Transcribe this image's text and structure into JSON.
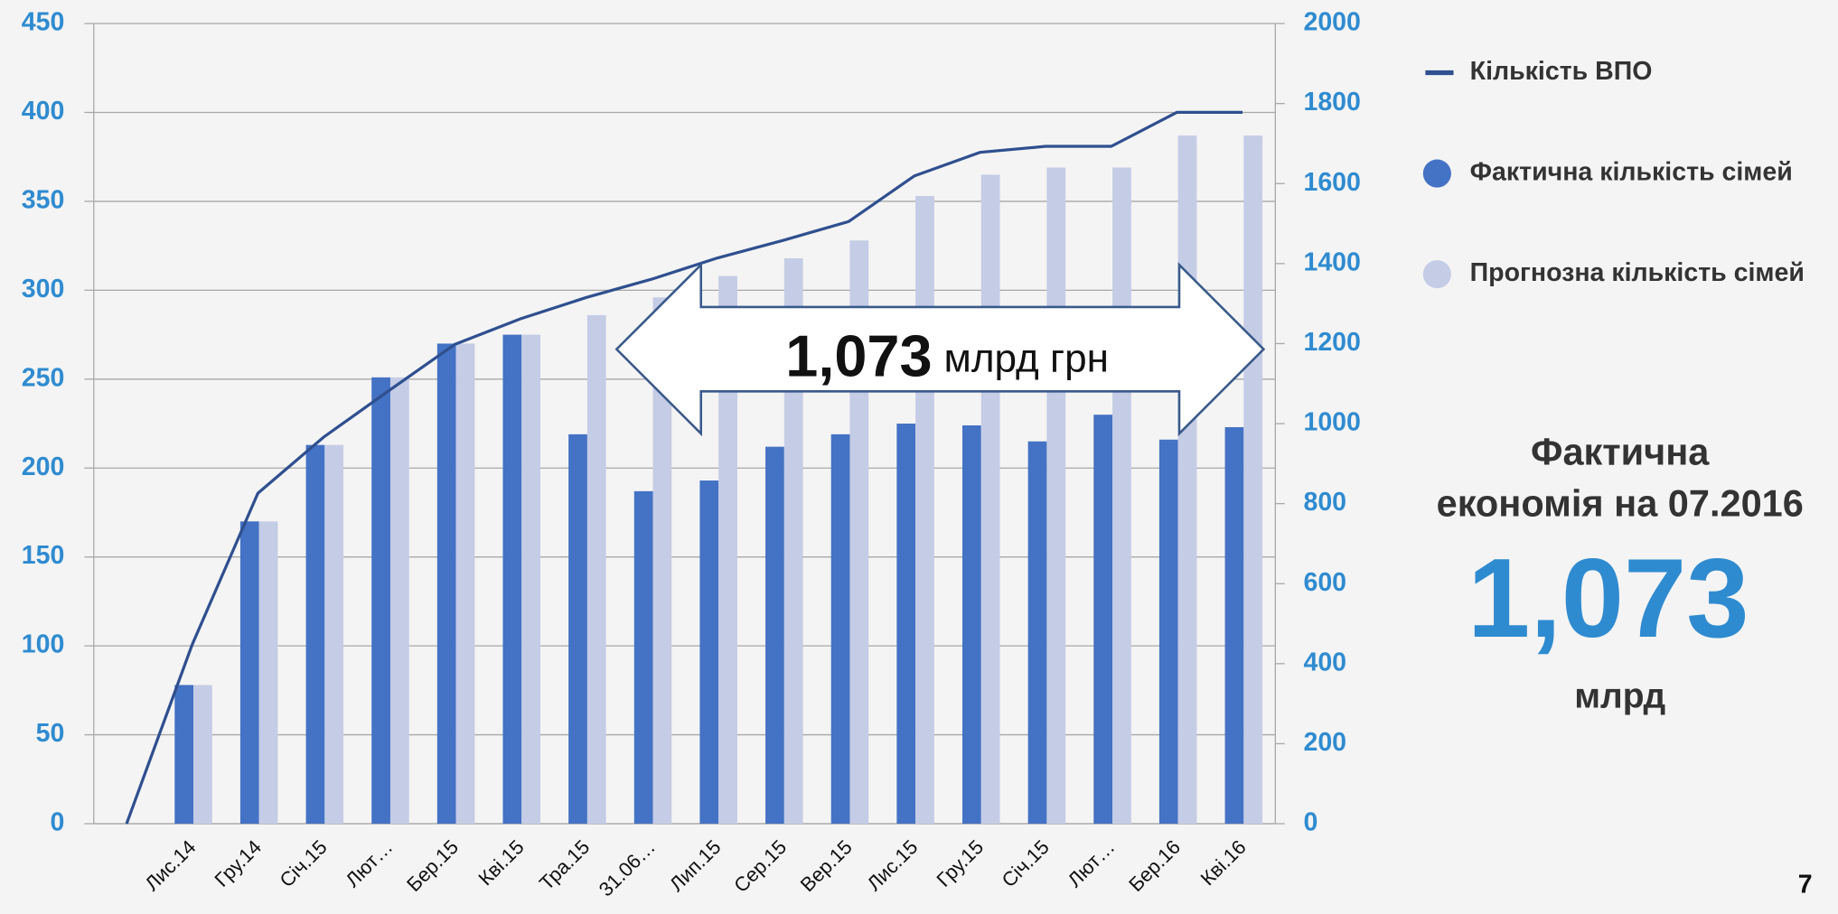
{
  "chart_data": {
    "type": "bar",
    "categories": [
      null,
      "Лис.14",
      "Гру.14",
      "Січ.15",
      "Лют…",
      "Бер.15",
      "Кві.15",
      "Тра.15",
      "31.06…",
      "Лип.15",
      "Сер.15",
      "Вер.15",
      "Лис.15",
      "Гру.15",
      "Січ.15",
      "Лют…",
      "Бер.16",
      "Кві.16"
    ],
    "series": [
      {
        "name": "Кількість ВПО",
        "type": "line",
        "axis": "y2",
        "color": "#2f4f8f",
        "values": [
          0,
          448,
          826,
          966,
          1083,
          1198,
          1262,
          1315,
          1361,
          1414,
          1458,
          1505,
          1619,
          1678,
          1693,
          1693,
          1778,
          1778
        ]
      },
      {
        "name": "Фактична кількість сімей",
        "type": "bar",
        "color": "#4472c4",
        "values": [
          null,
          78,
          170,
          213,
          251,
          270,
          275,
          219,
          187,
          193,
          212,
          219,
          225,
          224,
          215,
          230,
          216,
          223
        ]
      },
      {
        "name": "Прогнозна кількість сімей",
        "type": "bar",
        "color": "#c5cce6",
        "values": [
          null,
          78,
          170,
          213,
          251,
          270,
          275,
          286,
          296,
          308,
          318,
          328,
          353,
          365,
          369,
          369,
          387,
          387
        ]
      }
    ],
    "ylim": [
      0,
      450
    ],
    "yticks": [
      0,
      50,
      100,
      150,
      200,
      250,
      300,
      350,
      400,
      450
    ],
    "y2lim": [
      0,
      2000
    ],
    "y2ticks": [
      0,
      200,
      400,
      600,
      800,
      1000,
      1200,
      1400,
      1600,
      1800,
      2000
    ],
    "grid": true,
    "annotations": {
      "arrow_value": "1,073",
      "arrow_unit": "млрд грн"
    }
  },
  "side_panel": {
    "title_line1": "Фактична",
    "title_line2": "економія на 07.2016",
    "big_value": "1,073",
    "unit": "млрд"
  },
  "page_number": "7"
}
